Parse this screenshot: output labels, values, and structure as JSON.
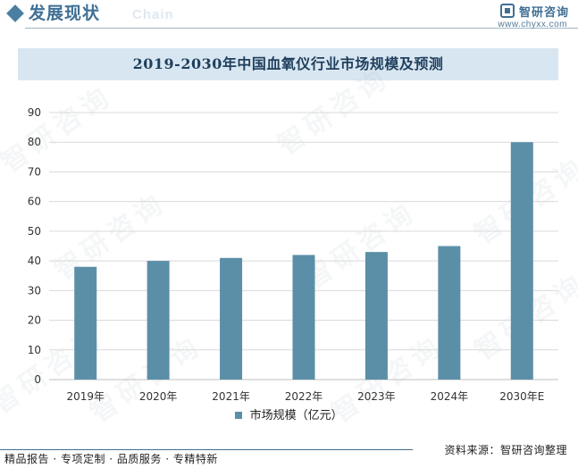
{
  "header": {
    "title": "发展现状",
    "subtitle": "Chain",
    "brand": "智研咨询",
    "website": "www.chyxx.com"
  },
  "watermark": "智研咨询",
  "footer": {
    "left": "精品报告 · 专项定制 · 品质服务 · 专精特新",
    "source": "资料来源：智研咨询整理"
  },
  "colors": {
    "bar": "#5b8fa8",
    "accent": "#3f6f95",
    "title_bg": "#d8e6f1",
    "grid": "#d9d9d9"
  },
  "chart_data": {
    "type": "bar",
    "title": "2019-2030年中国血氧仪行业市场规模及预测",
    "categories": [
      "2019年",
      "2020年",
      "2021年",
      "2022年",
      "2023年",
      "2024年",
      "2030年E"
    ],
    "series": [
      {
        "name": "市场规模（亿元）",
        "values": [
          38,
          40,
          41,
          42,
          43,
          45,
          80
        ]
      }
    ],
    "ylim": [
      0,
      90
    ],
    "yticks": [
      0,
      10,
      20,
      30,
      40,
      50,
      60,
      70,
      80,
      90
    ],
    "grid": true,
    "legend_position": "bottom"
  }
}
